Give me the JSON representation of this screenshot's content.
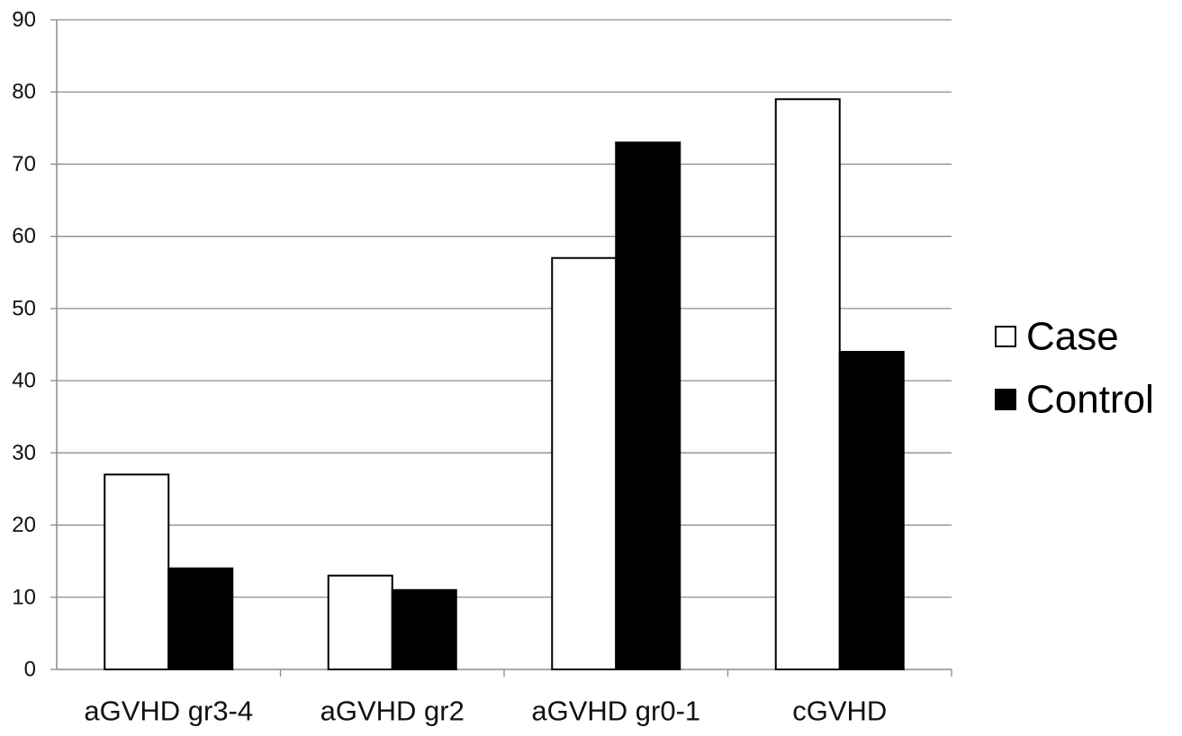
{
  "chart_data": {
    "type": "bar",
    "title": "",
    "xlabel": "",
    "ylabel": "",
    "categories": [
      "aGVHD gr3-4",
      "aGVHD gr2",
      "aGVHD gr0-1",
      "cGVHD"
    ],
    "series": [
      {
        "name": "Case",
        "values": [
          27,
          13,
          57,
          79
        ],
        "color": "#ffffff"
      },
      {
        "name": "Control",
        "values": [
          14,
          11,
          73,
          44
        ],
        "color": "#000000"
      }
    ],
    "ylim": [
      0,
      90
    ],
    "yticks": [
      0,
      10,
      20,
      30,
      40,
      50,
      60,
      70,
      80,
      90
    ],
    "grid": true,
    "legend_position": "right"
  }
}
